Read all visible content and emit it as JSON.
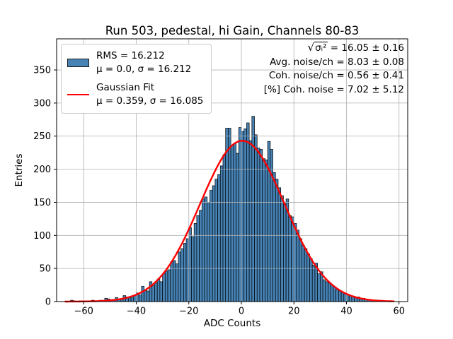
{
  "title": "Run 503, pedestal, hi Gain, Channels 80-83",
  "legend": {
    "entries": [
      {
        "type": "patch",
        "color": "#4682b4",
        "line1": "RMS = 16.212",
        "line2": "μ = 0.0, σ = 16.212"
      },
      {
        "type": "line",
        "color": "#ff0000",
        "line1": "Gaussian Fit",
        "line2": "μ = 0.359, σ = 16.085"
      }
    ]
  },
  "annotations": {
    "sqrt_line": {
      "root": "√",
      "arg": "σᵢ²",
      "rest": " = 16.05 ± 0.16"
    },
    "lines": [
      "Avg. noise/ch = 8.03 ± 0.08",
      "Coh. noise/ch = 0.56 ± 0.41",
      "[%] Coh. noise = 7.02 ± 5.12"
    ]
  },
  "chart_data": {
    "type": "bar",
    "subtype": "histogram_with_gaussian_fit",
    "title": "Run 503, pedestal, hi Gain, Channels 80-83",
    "xlabel": "ADC Counts",
    "ylabel": "Entries",
    "xlim": [
      -70.3,
      63.3
    ],
    "ylim": [
      0,
      397
    ],
    "x_ticks": [
      -60,
      -40,
      -20,
      0,
      20,
      40,
      60
    ],
    "y_ticks": [
      0,
      50,
      100,
      150,
      200,
      250,
      300,
      350
    ],
    "grid": true,
    "legend_position": "upper-left",
    "bar_color": "#4682b4",
    "bar_edge_color": "#000000",
    "fit_color": "#ff0000",
    "histogram_stats": {
      "rms": 16.212,
      "mu": 0.0,
      "sigma": 16.212
    },
    "fit_stats": {
      "mu": 0.359,
      "sigma": 16.085,
      "amplitude": 243
    },
    "noise_summary": {
      "sqrt_sigma_i2": "16.05 ± 0.16",
      "avg_noise_per_ch": "8.03 ± 0.08",
      "coh_noise_per_ch": "0.56 ± 0.41",
      "pct_coh_noise": "7.02 ± 5.12"
    },
    "bins": {
      "start": -65,
      "width": 1,
      "counts": [
        2,
        1,
        0,
        1,
        1,
        1,
        0,
        1,
        2,
        1,
        1,
        2,
        1,
        5,
        4,
        2,
        3,
        6,
        3,
        4,
        9,
        7,
        6,
        8,
        9,
        13,
        10,
        23,
        17,
        16,
        30,
        24,
        28,
        34,
        30,
        42,
        46,
        48,
        60,
        62,
        57,
        75,
        80,
        88,
        95,
        112,
        98,
        118,
        130,
        138,
        155,
        158,
        150,
        168,
        175,
        185,
        192,
        205,
        222,
        262,
        262,
        236,
        239,
        224,
        263,
        257,
        261,
        270,
        243,
        280,
        252,
        232,
        230,
        216,
        214,
        242,
        230,
        195,
        185,
        172,
        160,
        148,
        155,
        130,
        128,
        118,
        108,
        95,
        85,
        80,
        72,
        65,
        55,
        58,
        42,
        45,
        33,
        30,
        28,
        25,
        22,
        18,
        16,
        14,
        12,
        11,
        9,
        8,
        6,
        7,
        4,
        5,
        3,
        3,
        2,
        2,
        1,
        2,
        1,
        1
      ]
    },
    "gaussian_fit": {
      "amplitude": 243,
      "mu": 0.359,
      "sigma": 16.085,
      "x_range": [
        -67,
        58
      ]
    }
  }
}
